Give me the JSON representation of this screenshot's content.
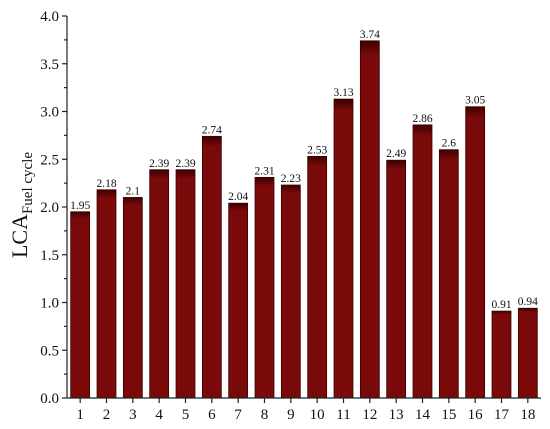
{
  "chart_data": {
    "type": "bar",
    "categories": [
      "1",
      "2",
      "3",
      "4",
      "5",
      "6",
      "7",
      "8",
      "9",
      "10",
      "11",
      "12",
      "13",
      "14",
      "15",
      "16",
      "17",
      "18"
    ],
    "values": [
      1.95,
      2.18,
      2.1,
      2.39,
      2.39,
      2.74,
      2.04,
      2.31,
      2.23,
      2.53,
      3.13,
      3.74,
      2.49,
      2.86,
      2.6,
      3.05,
      0.91,
      0.94
    ],
    "value_labels": [
      "1.95",
      "2.18",
      "2.1",
      "2.39",
      "2.39",
      "2.74",
      "2.04",
      "2.31",
      "2.23",
      "2.53",
      "3.13",
      "3.74",
      "2.49",
      "2.86",
      "2.6",
      "3.05",
      "0.91",
      "0.94"
    ],
    "title": "",
    "xlabel": "",
    "ylabel_main": "LCA",
    "ylabel_sub": "Fuel cycle",
    "ylim": [
      0,
      4.0
    ],
    "yticks": [
      "0.0",
      "0.5",
      "1.0",
      "1.5",
      "2.0",
      "2.5",
      "3.0",
      "3.5",
      "4.0"
    ],
    "grid": false,
    "legend": "none",
    "bar_color": "#7a0a0a",
    "bar_top_color": "#3d0000",
    "bar_stroke": "#3a0000"
  }
}
